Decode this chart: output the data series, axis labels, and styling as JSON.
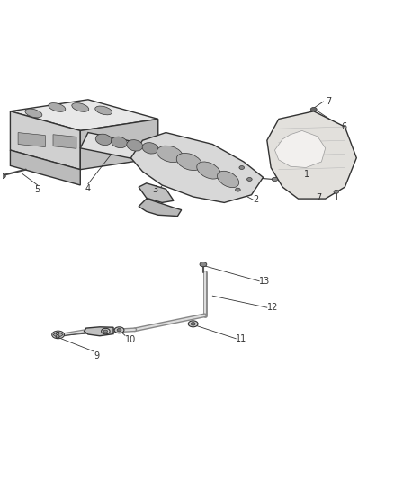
{
  "background_color": "#ffffff",
  "fig_width": 4.38,
  "fig_height": 5.33,
  "dpi": 100
}
